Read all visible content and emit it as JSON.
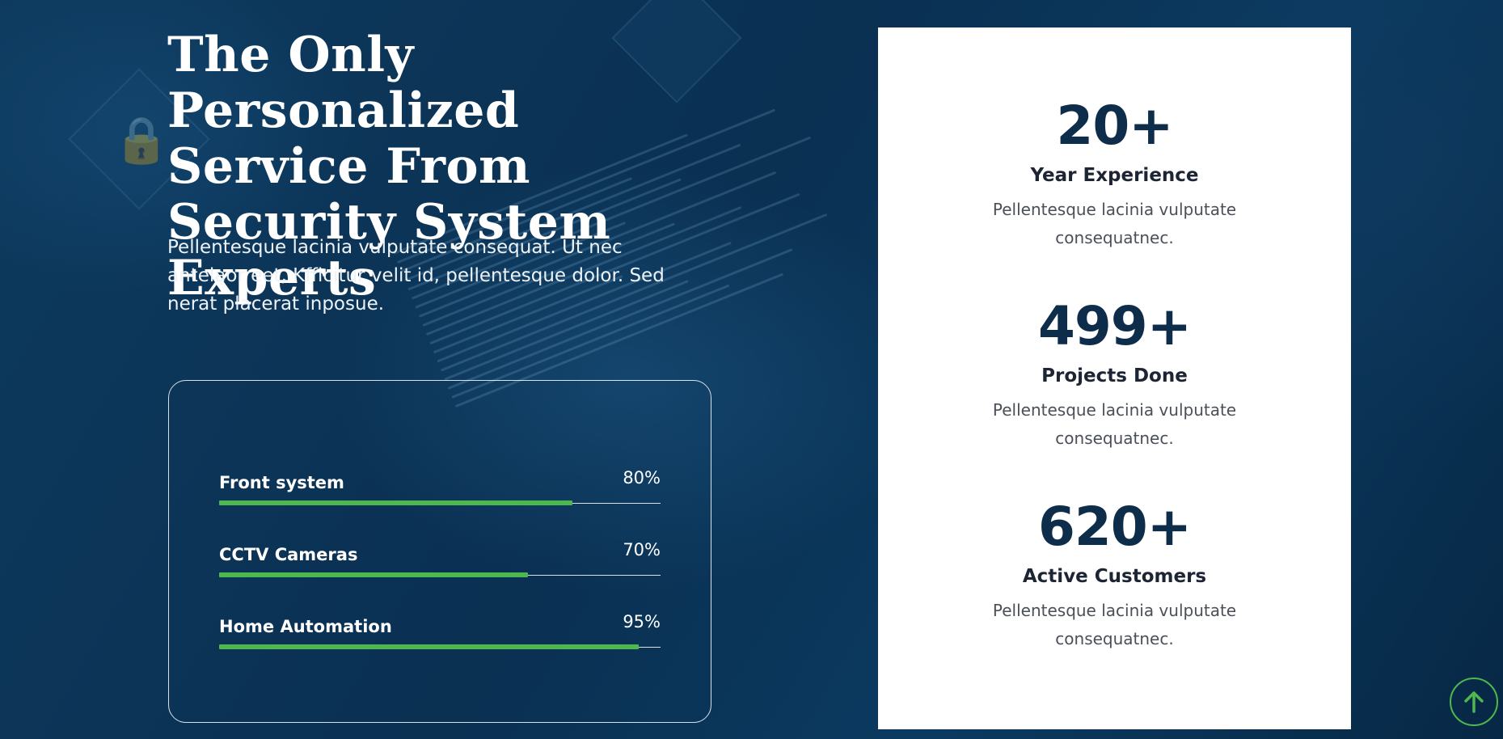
{
  "hero": {
    "title": "The Only Personalized Service From Security System Experts",
    "description": "Pellentesque lacinia vulputate consequat. Ut nec antelaor eet, Kfficitur velit id, pellentesque dolor. Sed nerat placerat inposue."
  },
  "skills": [
    {
      "label": "Front system",
      "percent_text": "80%",
      "percent": 80
    },
    {
      "label": "CCTV Cameras",
      "percent_text": "70%",
      "percent": 70
    },
    {
      "label": "Home Automation",
      "percent_text": "95%",
      "percent": 95
    }
  ],
  "stats": [
    {
      "number": "20+",
      "title": "Year Experience",
      "description": "Pellentesque lacinia vulputate consequatnec."
    },
    {
      "number": "499+",
      "title": "Projects Done",
      "description": "Pellentesque lacinia vulputate consequatnec."
    },
    {
      "number": "620+",
      "title": "Active Customers",
      "description": "Pellentesque lacinia vulputate consequatnec."
    }
  ],
  "colors": {
    "accent": "#4db84e",
    "navy": "#0d2d4a",
    "background": "#0b3558"
  },
  "icons": {
    "scroll_top": "arrow-up-icon"
  }
}
